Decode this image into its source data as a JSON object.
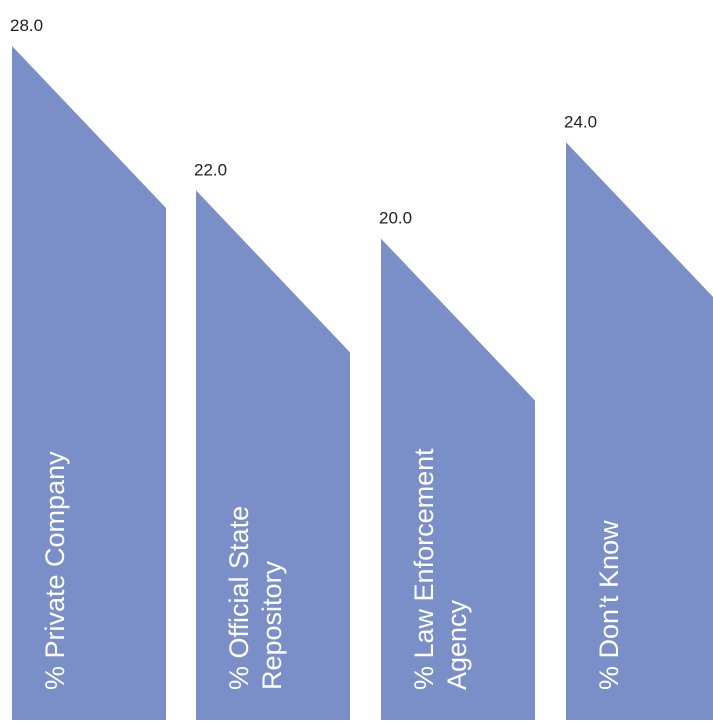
{
  "chart_data": {
    "type": "bar",
    "categories": [
      [
        "% Private Company"
      ],
      [
        "% Official State",
        "Repository"
      ],
      [
        "% Law Enforcement",
        "Agency"
      ],
      [
        "% Don’t Know"
      ]
    ],
    "values": [
      28.0,
      22.0,
      20.0,
      24.0
    ],
    "value_labels": [
      "28.0",
      "22.0",
      "20.0",
      "24.0"
    ],
    "ylim": [
      0,
      28
    ],
    "bar_color": "#7a8ec8",
    "value_label_color": "#1f1f1f",
    "category_label_color": "#ffffff"
  }
}
